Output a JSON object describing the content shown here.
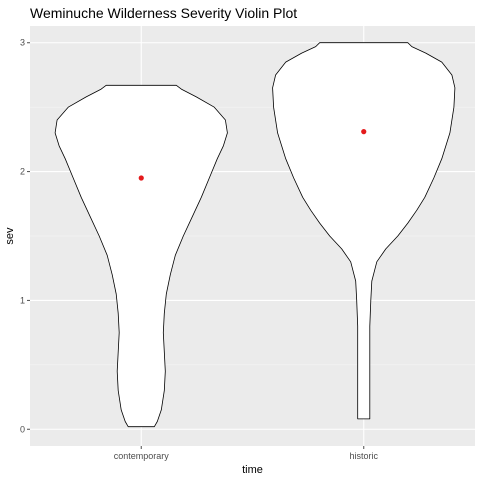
{
  "chart_data": {
    "type": "violin",
    "title": "Weminuche Wilderness Severity Violin Plot",
    "xlabel": "time",
    "ylabel": "sev",
    "categories": [
      "contemporary",
      "historic"
    ],
    "ylim": [
      -0.13,
      3.13
    ],
    "yticks": [
      0,
      1,
      2,
      3
    ],
    "grid": true,
    "legend": "none",
    "colors": {
      "panel": "#ebebeb",
      "grid_major": "#ffffff",
      "grid_minor": "#f5f5f5",
      "violin_fill": "#ffffff",
      "violin_stroke": "#000000",
      "mean_point": "#e41a1c",
      "tick": "#4d4d4d"
    },
    "violins": [
      {
        "category": "contemporary",
        "mean": 1.95,
        "ymin": 0.02,
        "ymax": 2.67,
        "density_profile": [
          [
            0.02,
            0.13
          ],
          [
            0.06,
            0.16
          ],
          [
            0.15,
            0.2
          ],
          [
            0.3,
            0.23
          ],
          [
            0.45,
            0.24
          ],
          [
            0.6,
            0.23
          ],
          [
            0.75,
            0.22
          ],
          [
            0.9,
            0.23
          ],
          [
            1.05,
            0.25
          ],
          [
            1.2,
            0.29
          ],
          [
            1.35,
            0.34
          ],
          [
            1.5,
            0.42
          ],
          [
            1.65,
            0.51
          ],
          [
            1.8,
            0.6
          ],
          [
            1.95,
            0.68
          ],
          [
            2.1,
            0.76
          ],
          [
            2.2,
            0.82
          ],
          [
            2.3,
            0.86
          ],
          [
            2.4,
            0.84
          ],
          [
            2.5,
            0.73
          ],
          [
            2.58,
            0.55
          ],
          [
            2.64,
            0.4
          ],
          [
            2.67,
            0.35
          ]
        ]
      },
      {
        "category": "historic",
        "mean": 2.31,
        "ymin": 0.08,
        "ymax": 3.0,
        "density_profile": [
          [
            0.08,
            0.06
          ],
          [
            0.2,
            0.06
          ],
          [
            0.4,
            0.06
          ],
          [
            0.6,
            0.06
          ],
          [
            0.8,
            0.06
          ],
          [
            1.0,
            0.07
          ],
          [
            1.15,
            0.08
          ],
          [
            1.3,
            0.13
          ],
          [
            1.4,
            0.22
          ],
          [
            1.5,
            0.34
          ],
          [
            1.6,
            0.44
          ],
          [
            1.7,
            0.53
          ],
          [
            1.8,
            0.61
          ],
          [
            1.95,
            0.7
          ],
          [
            2.1,
            0.78
          ],
          [
            2.3,
            0.86
          ],
          [
            2.5,
            0.9
          ],
          [
            2.65,
            0.91
          ],
          [
            2.75,
            0.88
          ],
          [
            2.85,
            0.78
          ],
          [
            2.92,
            0.62
          ],
          [
            2.97,
            0.48
          ],
          [
            3.0,
            0.44
          ]
        ]
      }
    ]
  }
}
